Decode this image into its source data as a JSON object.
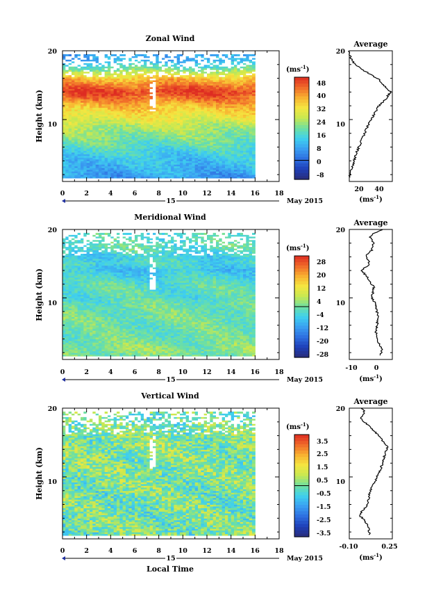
{
  "chart_data": [
    {
      "type": "heatmap",
      "title": "Zonal Wind",
      "ylabel": "Height (km)",
      "xlim": [
        0,
        18
      ],
      "ylim": [
        1,
        20
      ],
      "x_ticks": [
        "0",
        "2",
        "4",
        "6",
        "8",
        "10",
        "12",
        "14",
        "16",
        "18"
      ],
      "y_ticks": [
        "10",
        "20"
      ],
      "date_day": "15",
      "date_month": "May 2015",
      "colorbar": {
        "unit": "(ms",
        "unit_exp": "-1",
        "unit_close": ")",
        "labels": [
          "48",
          "40",
          "32",
          "24",
          "16",
          "8",
          "0",
          "-8"
        ],
        "range": [
          -12,
          52
        ]
      },
      "profile_values": [
        [
          1.6,
          7
        ],
        [
          3,
          10
        ],
        [
          5,
          14
        ],
        [
          7,
          20
        ],
        [
          9,
          26
        ],
        [
          10,
          30
        ],
        [
          11,
          34
        ],
        [
          12,
          38
        ],
        [
          13,
          45
        ],
        [
          14,
          50
        ],
        [
          15,
          43
        ],
        [
          15.8,
          38
        ],
        [
          16.5,
          30
        ],
        [
          17.5,
          18
        ],
        [
          18.5,
          10
        ],
        [
          19.3,
          8
        ],
        [
          20,
          6
        ]
      ],
      "average": {
        "title": "Average",
        "xlim": [
          7,
          52
        ],
        "x_ticks": [
          "20",
          "40"
        ],
        "y_ticks": [
          "10",
          "20"
        ],
        "unit": "(ms",
        "unit_exp": "-1",
        "unit_close": ")"
      }
    },
    {
      "type": "heatmap",
      "title": "Meridional Wind",
      "ylabel": "Height (km)",
      "xlim": [
        0,
        18
      ],
      "ylim": [
        1,
        20
      ],
      "x_ticks": [
        "0",
        "2",
        "4",
        "6",
        "8",
        "10",
        "12",
        "14",
        "16",
        "18"
      ],
      "y_ticks": [
        "10",
        "20"
      ],
      "date_day": "15",
      "date_month": "May 2015",
      "colorbar": {
        "unit": "(ms",
        "unit_exp": "-1",
        "unit_close": ")",
        "labels": [
          "28",
          "20",
          "12",
          "4",
          "-4",
          "-12",
          "-20",
          "-28"
        ],
        "range": [
          -32,
          32
        ]
      },
      "profile_values": [
        [
          1.6,
          1
        ],
        [
          2.5,
          2
        ],
        [
          3.5,
          0
        ],
        [
          5,
          -1
        ],
        [
          7,
          0
        ],
        [
          9,
          -1
        ],
        [
          10,
          -3
        ],
        [
          11.5,
          -2
        ],
        [
          12.5,
          -4
        ],
        [
          13,
          -5
        ],
        [
          14,
          -8
        ],
        [
          15,
          -4
        ],
        [
          16,
          -6
        ],
        [
          17,
          -3
        ],
        [
          18,
          -2
        ],
        [
          19,
          -4
        ],
        [
          19.6,
          -1
        ],
        [
          20,
          2
        ]
      ],
      "average": {
        "title": "Average",
        "xlim": [
          -14,
          7
        ],
        "x_ticks": [
          "-10",
          "0"
        ],
        "y_ticks": [
          "10",
          "20"
        ],
        "unit": "(ms",
        "unit_exp": "-1",
        "unit_close": ")"
      }
    },
    {
      "type": "heatmap",
      "title": "Vertical Wind",
      "xlabel": "Local Time",
      "ylabel": "Height (km)",
      "xlim": [
        0,
        18
      ],
      "ylim": [
        1,
        20
      ],
      "x_ticks": [
        "0",
        "2",
        "4",
        "6",
        "8",
        "10",
        "12",
        "14",
        "16",
        "18"
      ],
      "y_ticks": [
        "10",
        "20"
      ],
      "date_day": "15",
      "date_month": "May 2015",
      "colorbar": {
        "unit": "(ms",
        "unit_exp": "-1",
        "unit_close": ")",
        "labels": [
          "3.5",
          "2.5",
          "1.5",
          "0.5",
          "-0.5",
          "-1.5",
          "-2.5",
          "-3.5"
        ],
        "range": [
          -4,
          4
        ]
      },
      "profile_values": [
        [
          1.6,
          0.04
        ],
        [
          3,
          0.03
        ],
        [
          4.5,
          -0.06
        ],
        [
          6,
          0.02
        ],
        [
          8,
          0.05
        ],
        [
          9.5,
          0.1
        ],
        [
          11,
          0.15
        ],
        [
          12.5,
          0.18
        ],
        [
          13.5,
          0.2
        ],
        [
          14.5,
          0.22
        ],
        [
          15.5,
          0.16
        ],
        [
          16.5,
          0.1
        ],
        [
          17.5,
          0.03
        ],
        [
          18.5,
          -0.05
        ],
        [
          19.3,
          0.0
        ],
        [
          20,
          -0.04
        ]
      ],
      "average": {
        "title": "Average",
        "xlim": [
          -0.16,
          0.27
        ],
        "x_ticks": [
          "-0.10",
          "0.25"
        ],
        "y_ticks": [
          "10",
          "20"
        ],
        "unit": "(ms",
        "unit_exp": "-1",
        "unit_close": ")"
      }
    }
  ],
  "colors": {
    "colormap": [
      "#2a2d7a",
      "#1e3fb8",
      "#2e6fe0",
      "#3aa0f2",
      "#3fd0ee",
      "#6fe0a0",
      "#c8e850",
      "#f5e640",
      "#f8b030",
      "#f06a2a",
      "#de2c22"
    ],
    "missing": "#ffffff"
  }
}
